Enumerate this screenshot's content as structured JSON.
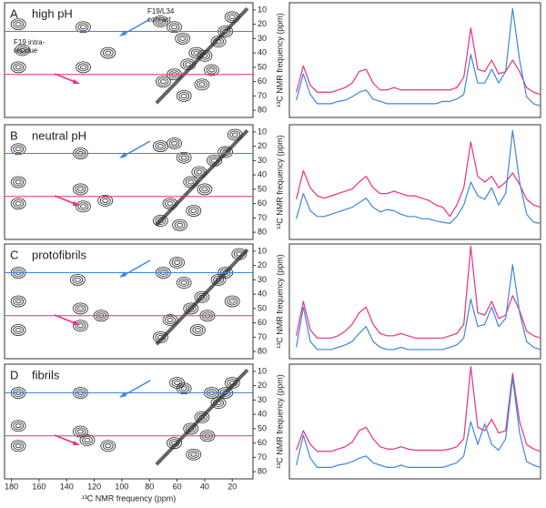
{
  "chart_data": [
    {
      "type": "contour",
      "panel": "A",
      "title": "high pH",
      "xlim": [
        185,
        5
      ],
      "ylim": [
        5,
        85
      ],
      "yticks": [
        10,
        20,
        30,
        40,
        50,
        60,
        70,
        80
      ],
      "ylabel": "¹³C NMR frequency (ppm)",
      "annotations": [
        {
          "lines": [
            "F19/L34",
            "contact"
          ],
          "color": "#3d86e0"
        },
        {
          "lines": [
            "F19 intra-",
            "residue"
          ],
          "color": "#e8307f"
        }
      ],
      "slices": [
        {
          "y": 25,
          "color": "#3d86e0"
        },
        {
          "y": 55,
          "color": "#e8307f"
        }
      ],
      "peaks": [
        {
          "x": 175,
          "y": 20
        },
        {
          "x": 175,
          "y": 50
        },
        {
          "x": 172,
          "y": 38
        },
        {
          "x": 128,
          "y": 22
        },
        {
          "x": 128,
          "y": 50
        },
        {
          "x": 110,
          "y": 40
        },
        {
          "x": 72,
          "y": 18
        },
        {
          "x": 62,
          "y": 22
        },
        {
          "x": 56,
          "y": 30
        },
        {
          "x": 52,
          "y": 48
        },
        {
          "x": 46,
          "y": 40
        },
        {
          "x": 40,
          "y": 42
        },
        {
          "x": 35,
          "y": 52
        },
        {
          "x": 30,
          "y": 32
        },
        {
          "x": 25,
          "y": 25
        },
        {
          "x": 20,
          "y": 15
        },
        {
          "x": 62,
          "y": 55
        },
        {
          "x": 42,
          "y": 62
        },
        {
          "x": 70,
          "y": 60
        },
        {
          "x": 55,
          "y": 70
        }
      ]
    },
    {
      "type": "contour",
      "panel": "B",
      "title": "neutral pH",
      "xlim": [
        185,
        5
      ],
      "ylim": [
        5,
        85
      ],
      "yticks": [
        10,
        20,
        30,
        40,
        50,
        60,
        70,
        80
      ],
      "ylabel": "¹³C NMR frequency (ppm)",
      "slices": [
        {
          "y": 25,
          "color": "#3d86e0"
        },
        {
          "y": 55,
          "color": "#e8307f"
        }
      ],
      "peaks": [
        {
          "x": 175,
          "y": 22
        },
        {
          "x": 175,
          "y": 45
        },
        {
          "x": 175,
          "y": 60
        },
        {
          "x": 130,
          "y": 25
        },
        {
          "x": 130,
          "y": 50
        },
        {
          "x": 128,
          "y": 62
        },
        {
          "x": 112,
          "y": 58
        },
        {
          "x": 72,
          "y": 20
        },
        {
          "x": 62,
          "y": 18
        },
        {
          "x": 55,
          "y": 28
        },
        {
          "x": 50,
          "y": 45
        },
        {
          "x": 44,
          "y": 38
        },
        {
          "x": 40,
          "y": 50
        },
        {
          "x": 33,
          "y": 30
        },
        {
          "x": 25,
          "y": 24
        },
        {
          "x": 18,
          "y": 12
        },
        {
          "x": 65,
          "y": 60
        },
        {
          "x": 48,
          "y": 65
        },
        {
          "x": 72,
          "y": 72
        },
        {
          "x": 58,
          "y": 75
        }
      ]
    },
    {
      "type": "contour",
      "panel": "C",
      "title": "protofibrils",
      "xlim": [
        185,
        5
      ],
      "ylim": [
        5,
        85
      ],
      "yticks": [
        10,
        20,
        30,
        40,
        50,
        60,
        70,
        80
      ],
      "ylabel": "¹³C NMR frequency (ppm)",
      "slices": [
        {
          "y": 25,
          "color": "#3d86e0"
        },
        {
          "y": 55,
          "color": "#e8307f"
        }
      ],
      "peaks": [
        {
          "x": 175,
          "y": 25
        },
        {
          "x": 175,
          "y": 45
        },
        {
          "x": 175,
          "y": 65
        },
        {
          "x": 132,
          "y": 30
        },
        {
          "x": 130,
          "y": 50
        },
        {
          "x": 130,
          "y": 62
        },
        {
          "x": 115,
          "y": 55
        },
        {
          "x": 70,
          "y": 25
        },
        {
          "x": 60,
          "y": 18
        },
        {
          "x": 55,
          "y": 32
        },
        {
          "x": 50,
          "y": 50
        },
        {
          "x": 42,
          "y": 42
        },
        {
          "x": 38,
          "y": 55
        },
        {
          "x": 30,
          "y": 30
        },
        {
          "x": 25,
          "y": 25
        },
        {
          "x": 15,
          "y": 12
        },
        {
          "x": 65,
          "y": 58
        },
        {
          "x": 45,
          "y": 65
        },
        {
          "x": 72,
          "y": 70
        },
        {
          "x": 20,
          "y": 45
        }
      ]
    },
    {
      "type": "contour",
      "panel": "D",
      "title": "fibrils",
      "xlim": [
        185,
        5
      ],
      "ylim": [
        5,
        85
      ],
      "yticks": [
        10,
        20,
        30,
        40,
        50,
        60,
        70,
        80
      ],
      "ylabel": "¹³C NMR frequency (ppm)",
      "xticks": [
        180,
        160,
        140,
        120,
        100,
        80,
        60,
        40,
        20
      ],
      "xlabel": "¹³C NMR frequency (ppm)",
      "slices": [
        {
          "y": 25,
          "color": "#3d86e0"
        },
        {
          "y": 55,
          "color": "#e8307f"
        }
      ],
      "peaks": [
        {
          "x": 175,
          "y": 25
        },
        {
          "x": 175,
          "y": 48
        },
        {
          "x": 175,
          "y": 62
        },
        {
          "x": 130,
          "y": 25
        },
        {
          "x": 130,
          "y": 52
        },
        {
          "x": 125,
          "y": 58
        },
        {
          "x": 110,
          "y": 62
        },
        {
          "x": 60,
          "y": 18
        },
        {
          "x": 55,
          "y": 22
        },
        {
          "x": 50,
          "y": 50
        },
        {
          "x": 42,
          "y": 42
        },
        {
          "x": 38,
          "y": 55
        },
        {
          "x": 30,
          "y": 32
        },
        {
          "x": 25,
          "y": 25
        },
        {
          "x": 20,
          "y": 18
        },
        {
          "x": 62,
          "y": 60
        },
        {
          "x": 48,
          "y": 68
        },
        {
          "x": 35,
          "y": 25
        }
      ]
    },
    {
      "type": "line",
      "xlim": [
        185,
        5
      ],
      "ylim": [
        0,
        100
      ],
      "x": [
        180,
        175,
        170,
        165,
        160,
        155,
        150,
        145,
        140,
        135,
        130,
        125,
        120,
        115,
        110,
        105,
        100,
        95,
        90,
        85,
        80,
        75,
        70,
        65,
        60,
        55,
        50,
        45,
        40,
        35,
        30,
        25,
        20,
        15,
        10,
        5
      ],
      "series": [
        {
          "color": "#e8307f",
          "values": [
            22,
            45,
            28,
            22,
            22,
            22,
            24,
            26,
            30,
            40,
            42,
            30,
            24,
            24,
            26,
            24,
            24,
            24,
            24,
            24,
            24,
            24,
            24,
            26,
            35,
            78,
            42,
            40,
            50,
            38,
            40,
            50,
            40,
            26,
            22,
            20
          ]
        },
        {
          "color": "#3d86e0",
          "values": [
            15,
            38,
            20,
            12,
            12,
            12,
            14,
            15,
            18,
            22,
            24,
            16,
            14,
            12,
            12,
            12,
            12,
            12,
            12,
            12,
            12,
            14,
            14,
            16,
            20,
            55,
            30,
            30,
            42,
            30,
            40,
            95,
            50,
            18,
            12,
            10
          ]
        }
      ]
    },
    {
      "type": "line",
      "xlim": [
        185,
        5
      ],
      "ylim": [
        0,
        100
      ],
      "x": [
        180,
        175,
        170,
        165,
        160,
        155,
        150,
        145,
        140,
        135,
        130,
        125,
        120,
        115,
        110,
        105,
        100,
        95,
        90,
        85,
        80,
        75,
        70,
        65,
        60,
        55,
        50,
        45,
        40,
        35,
        30,
        25,
        20,
        15,
        10,
        5
      ],
      "series": [
        {
          "color": "#e8307f",
          "values": [
            35,
            60,
            45,
            38,
            36,
            38,
            40,
            42,
            44,
            50,
            55,
            45,
            40,
            40,
            42,
            40,
            38,
            38,
            36,
            34,
            30,
            28,
            20,
            30,
            45,
            85,
            55,
            50,
            55,
            45,
            50,
            58,
            48,
            35,
            30,
            28
          ]
        },
        {
          "color": "#3d86e0",
          "values": [
            18,
            40,
            25,
            20,
            20,
            22,
            24,
            26,
            28,
            32,
            36,
            28,
            24,
            26,
            25,
            22,
            20,
            20,
            18,
            18,
            16,
            15,
            14,
            20,
            30,
            50,
            38,
            35,
            45,
            30,
            40,
            95,
            50,
            22,
            15,
            14
          ]
        }
      ]
    },
    {
      "type": "line",
      "xlim": [
        185,
        5
      ],
      "ylim": [
        0,
        100
      ],
      "x": [
        180,
        175,
        170,
        165,
        160,
        155,
        150,
        145,
        140,
        135,
        130,
        125,
        120,
        115,
        110,
        105,
        100,
        95,
        90,
        85,
        80,
        75,
        70,
        65,
        60,
        55,
        50,
        45,
        40,
        35,
        30,
        25,
        20,
        15,
        10,
        5
      ],
      "series": [
        {
          "color": "#e8307f",
          "values": [
            20,
            50,
            25,
            18,
            18,
            18,
            20,
            24,
            30,
            40,
            45,
            30,
            22,
            20,
            20,
            22,
            20,
            18,
            18,
            18,
            18,
            18,
            20,
            22,
            30,
            98,
            40,
            38,
            50,
            35,
            38,
            55,
            42,
            24,
            20,
            18
          ]
        },
        {
          "color": "#3d86e0",
          "values": [
            10,
            45,
            15,
            8,
            8,
            8,
            10,
            12,
            15,
            22,
            28,
            15,
            10,
            8,
            8,
            10,
            8,
            8,
            8,
            8,
            8,
            8,
            10,
            12,
            18,
            52,
            28,
            30,
            45,
            28,
            35,
            82,
            40,
            15,
            10,
            8
          ]
        }
      ]
    },
    {
      "type": "line",
      "xlim": [
        185,
        5
      ],
      "ylim": [
        0,
        100
      ],
      "x": [
        180,
        175,
        170,
        165,
        160,
        155,
        150,
        145,
        140,
        135,
        130,
        125,
        120,
        115,
        110,
        105,
        100,
        95,
        90,
        85,
        80,
        75,
        70,
        65,
        60,
        55,
        50,
        45,
        40,
        35,
        30,
        25,
        20,
        15,
        10,
        5
      ],
      "series": [
        {
          "color": "#e8307f",
          "values": [
            25,
            42,
            30,
            24,
            24,
            24,
            26,
            28,
            32,
            42,
            45,
            35,
            28,
            26,
            26,
            28,
            26,
            25,
            25,
            25,
            25,
            25,
            26,
            28,
            35,
            98,
            45,
            42,
            52,
            40,
            42,
            92,
            50,
            30,
            26,
            24
          ]
        },
        {
          "color": "#3d86e0",
          "values": [
            12,
            38,
            18,
            10,
            10,
            10,
            12,
            13,
            15,
            18,
            20,
            14,
            12,
            10,
            10,
            12,
            10,
            10,
            10,
            10,
            10,
            10,
            12,
            14,
            20,
            50,
            30,
            48,
            30,
            25,
            35,
            88,
            40,
            15,
            12,
            10
          ]
        }
      ]
    }
  ]
}
